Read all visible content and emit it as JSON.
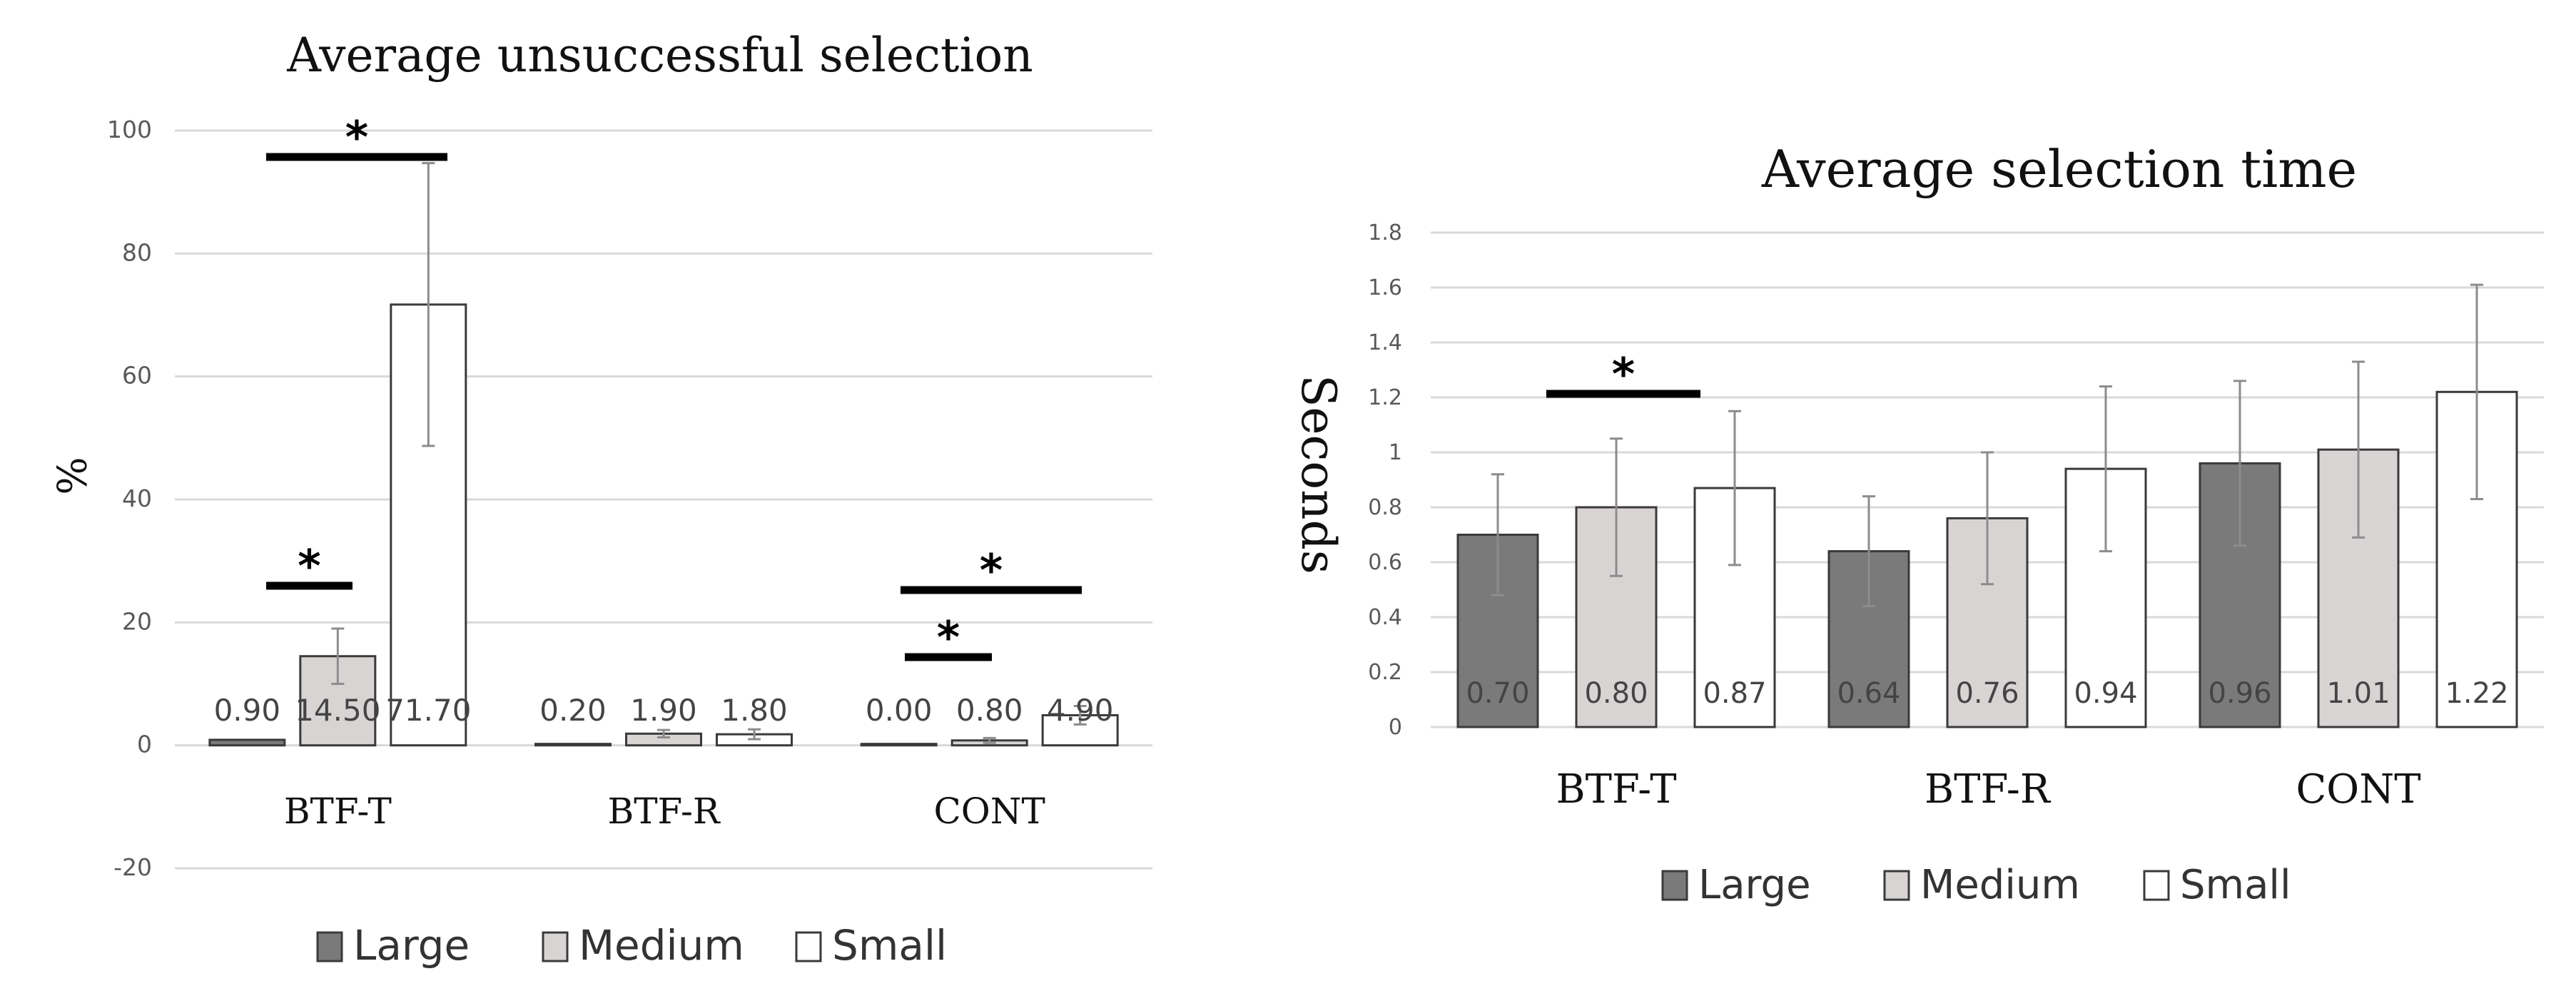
{
  "colors": {
    "large": "#7a7a7a",
    "medium": "#d9d4d4",
    "small": "#ffffff",
    "bar_stroke": "#3a3a3a",
    "grid": "#d9d9d9",
    "text": "#111111",
    "tick": "#595959",
    "error": "#8c8c8c"
  },
  "chart_data": [
    {
      "type": "bar",
      "title": "Average unsuccessful selection",
      "xlabel": "",
      "ylabel": "%",
      "ylim": [
        -20,
        100
      ],
      "yticks": [
        "-20",
        "0",
        "20",
        "40",
        "60",
        "80",
        "100"
      ],
      "categories": [
        "BTF-T",
        "BTF-R",
        "CONT"
      ],
      "series": [
        {
          "name": "Large",
          "values": [
            0.9,
            0.2,
            0.0
          ],
          "labels": [
            "0.90",
            "0.20",
            "0.00"
          ],
          "error": [
            0.0,
            0.0,
            0.0
          ]
        },
        {
          "name": "Medium",
          "values": [
            14.5,
            1.9,
            0.8
          ],
          "labels": [
            "14.50",
            "1.90",
            "0.80"
          ],
          "error": [
            4.5,
            0.6,
            0.4
          ]
        },
        {
          "name": "Small",
          "values": [
            71.7,
            1.8,
            4.9
          ],
          "labels": [
            "71.70",
            "1.80",
            "4.90"
          ],
          "error": [
            23.0,
            0.8,
            1.5
          ]
        }
      ],
      "grid": true,
      "legend": "bottom",
      "significance_marker": "*"
    },
    {
      "type": "bar",
      "title": "Average selection time",
      "xlabel": "",
      "ylabel": "Seconds",
      "ylim": [
        0,
        1.8
      ],
      "yticks": [
        "0",
        "0.2",
        "0.4",
        "0.6",
        "0.8",
        "1",
        "1.2",
        "1.4",
        "1.6",
        "1.8"
      ],
      "categories": [
        "BTF-T",
        "BTF-R",
        "CONT"
      ],
      "series": [
        {
          "name": "Large",
          "values": [
            0.7,
            0.64,
            0.96
          ],
          "labels": [
            "0.70",
            "0.64",
            "0.96"
          ],
          "error": [
            0.22,
            0.2,
            0.3
          ]
        },
        {
          "name": "Medium",
          "values": [
            0.8,
            0.76,
            1.01
          ],
          "labels": [
            "0.80",
            "0.76",
            "1.01"
          ],
          "error": [
            0.25,
            0.24,
            0.32
          ]
        },
        {
          "name": "Small",
          "values": [
            0.87,
            0.94,
            1.22
          ],
          "labels": [
            "0.87",
            "0.94",
            "1.22"
          ],
          "error": [
            0.28,
            0.3,
            0.39
          ]
        }
      ],
      "grid": true,
      "legend": "bottom",
      "significance_marker": "*"
    }
  ]
}
